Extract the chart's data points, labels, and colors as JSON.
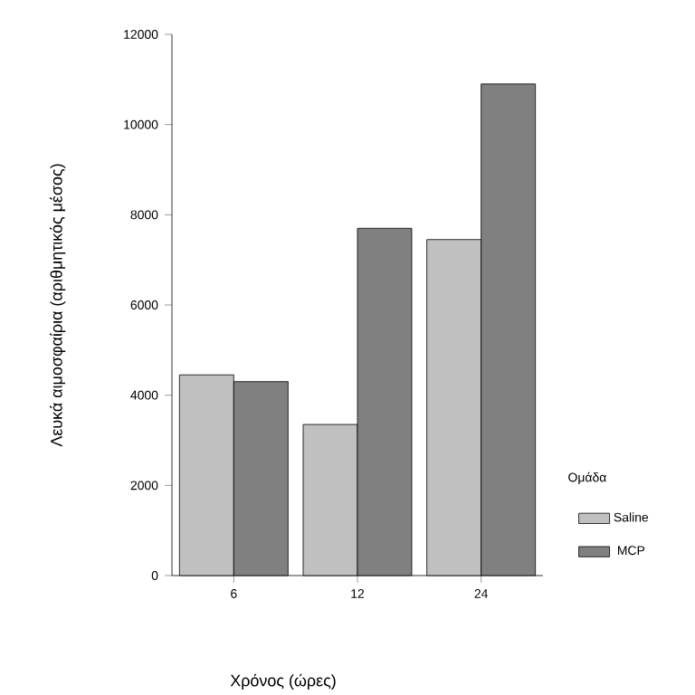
{
  "chart_data": {
    "type": "bar",
    "xlabel": "Χρόνος (ώρες)",
    "ylabel": "Λευκά αιμοσφαίρια (αριθμητικός μέσος)",
    "legend_title": "Ομάδα",
    "categories": [
      "6",
      "12",
      "24"
    ],
    "series": [
      {
        "name": "Saline",
        "color": "#c0c0c0",
        "values": [
          4450,
          3350,
          7450
        ]
      },
      {
        "name": "MCP",
        "color": "#808080",
        "values": [
          4300,
          7700,
          10900
        ]
      }
    ],
    "ylim": [
      0,
      12000
    ],
    "yticks": [
      0,
      2000,
      4000,
      6000,
      8000,
      10000,
      12000
    ],
    "grid": false,
    "legend": "right"
  }
}
